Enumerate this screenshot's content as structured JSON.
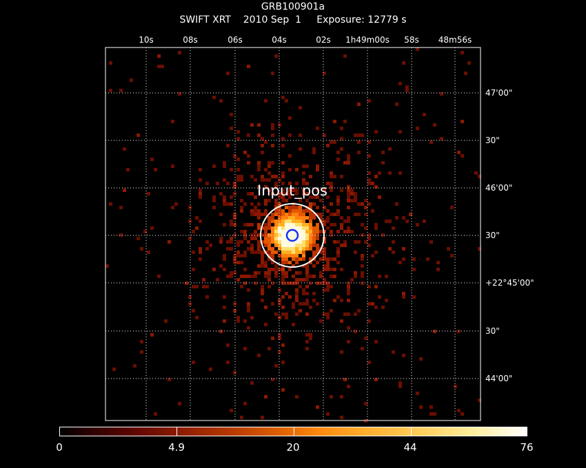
{
  "header": {
    "object": "GRB100901a",
    "subtitle": "SWIFT XRT    2010 Sep  1     Exposure: 12779 s"
  },
  "ra_ticks": [
    {
      "label": "10",
      "unit": "s"
    },
    {
      "label": "08",
      "unit": "s"
    },
    {
      "label": "06",
      "unit": "s"
    },
    {
      "label": "04",
      "unit": "s"
    },
    {
      "label": "02",
      "unit": "s"
    },
    {
      "label": "1h49m00s",
      "unit": ""
    },
    {
      "label": "58",
      "unit": "s"
    },
    {
      "label": "48m56s",
      "unit": ""
    }
  ],
  "dec_ticks": [
    "47'00\"",
    "30\"",
    "46'00\"",
    "30\"",
    "+22°45'00\"",
    "30\"",
    "44'00\""
  ],
  "source_label": "Input_pos",
  "colorbar": {
    "ticks": [
      "0",
      "4.9",
      "20",
      "44",
      "76"
    ]
  }
}
